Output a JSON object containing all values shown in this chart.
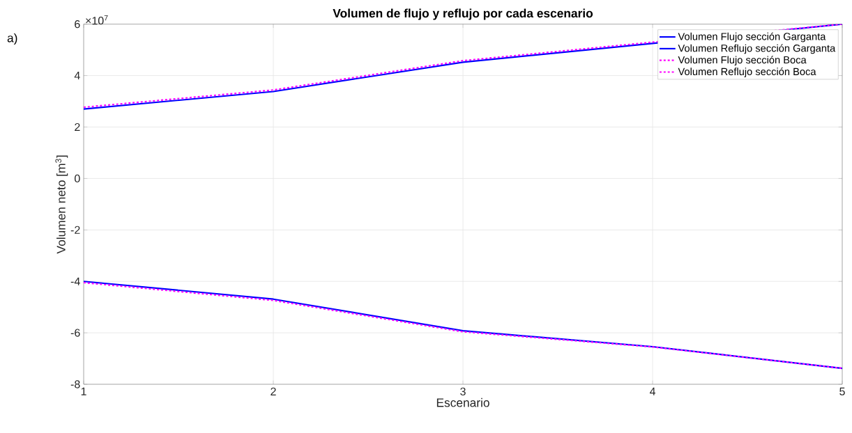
{
  "chart_data": {
    "type": "line",
    "title": "Volumen de flujo y reflujo por cada escenario",
    "xlabel": "Escenario",
    "ylabel": "Volumen neto [m$^{3}$]",
    "annotations": [
      "a)",
      "×10$^{7}$"
    ],
    "x": [
      1,
      2,
      3,
      4,
      5
    ],
    "series": [
      {
        "name": "Volumen Flujo sección Garganta",
        "color": "#0000ff",
        "line_style": "solid",
        "values": [
          2.7,
          3.38,
          4.52,
          5.25,
          6.0
        ]
      },
      {
        "name": "Volumen Reflujo sección Garganta",
        "color": "#0000ff",
        "line_style": "solid",
        "values": [
          -4.0,
          -4.69,
          -5.92,
          -6.54,
          -7.38
        ]
      },
      {
        "name": "Volumen Flujo sección Boca",
        "color": "#ff00ff",
        "line_style": "dotted",
        "values": [
          2.77,
          3.44,
          4.58,
          5.3,
          6.0
        ]
      },
      {
        "name": "Volumen Reflujo sección Boca",
        "color": "#ff00ff",
        "line_style": "dotted",
        "values": [
          -4.05,
          -4.74,
          -5.96,
          -6.55,
          -7.38
        ]
      }
    ],
    "xlim": [
      1,
      5
    ],
    "xticks": [
      1,
      2,
      3,
      4,
      5
    ],
    "ylim": [
      -8,
      6
    ],
    "yticks": [
      -8,
      -6,
      -4,
      -2,
      0,
      2,
      4,
      6
    ],
    "grid": true,
    "legend": "top right",
    "marker": "none"
  }
}
